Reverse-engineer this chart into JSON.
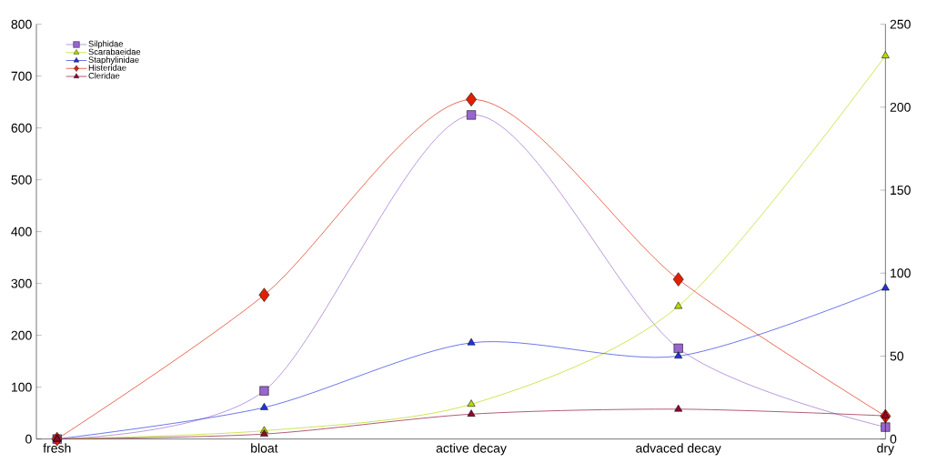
{
  "chart_data": {
    "type": "line",
    "categories": [
      "fresh",
      "bloat",
      "active decay",
      "advaced decay",
      "dry"
    ],
    "series": [
      {
        "name": "Silphidae",
        "color": "#9966cc",
        "marker": "square",
        "values": [
          0,
          93,
          625,
          175,
          23
        ]
      },
      {
        "name": "Scarabaeidae",
        "color": "#b8d800",
        "marker": "triangle",
        "axis": "y2",
        "values": [
          0,
          5,
          21,
          80,
          231
        ]
      },
      {
        "name": "Staphylinidae",
        "color": "#2233dd",
        "marker": "triangle",
        "axis": "y2",
        "values": [
          0,
          19,
          58,
          50,
          91
        ]
      },
      {
        "name": "Histeridae",
        "color": "#e02000",
        "marker": "diamond",
        "values": [
          0,
          278,
          655,
          308,
          44
        ]
      },
      {
        "name": "Cleridae",
        "color": "#8b0a30",
        "marker": "triangle",
        "axis": "y2",
        "values": [
          0,
          3,
          15,
          18,
          14
        ]
      }
    ],
    "ylim": [
      0,
      800
    ],
    "yticks": [
      0,
      100,
      200,
      300,
      400,
      500,
      600,
      700,
      800
    ],
    "y2lim": [
      0,
      250
    ],
    "y2ticks": [
      0,
      50,
      100,
      150,
      200,
      250
    ],
    "grid": false,
    "legend": "top left",
    "line_style": "solid"
  }
}
